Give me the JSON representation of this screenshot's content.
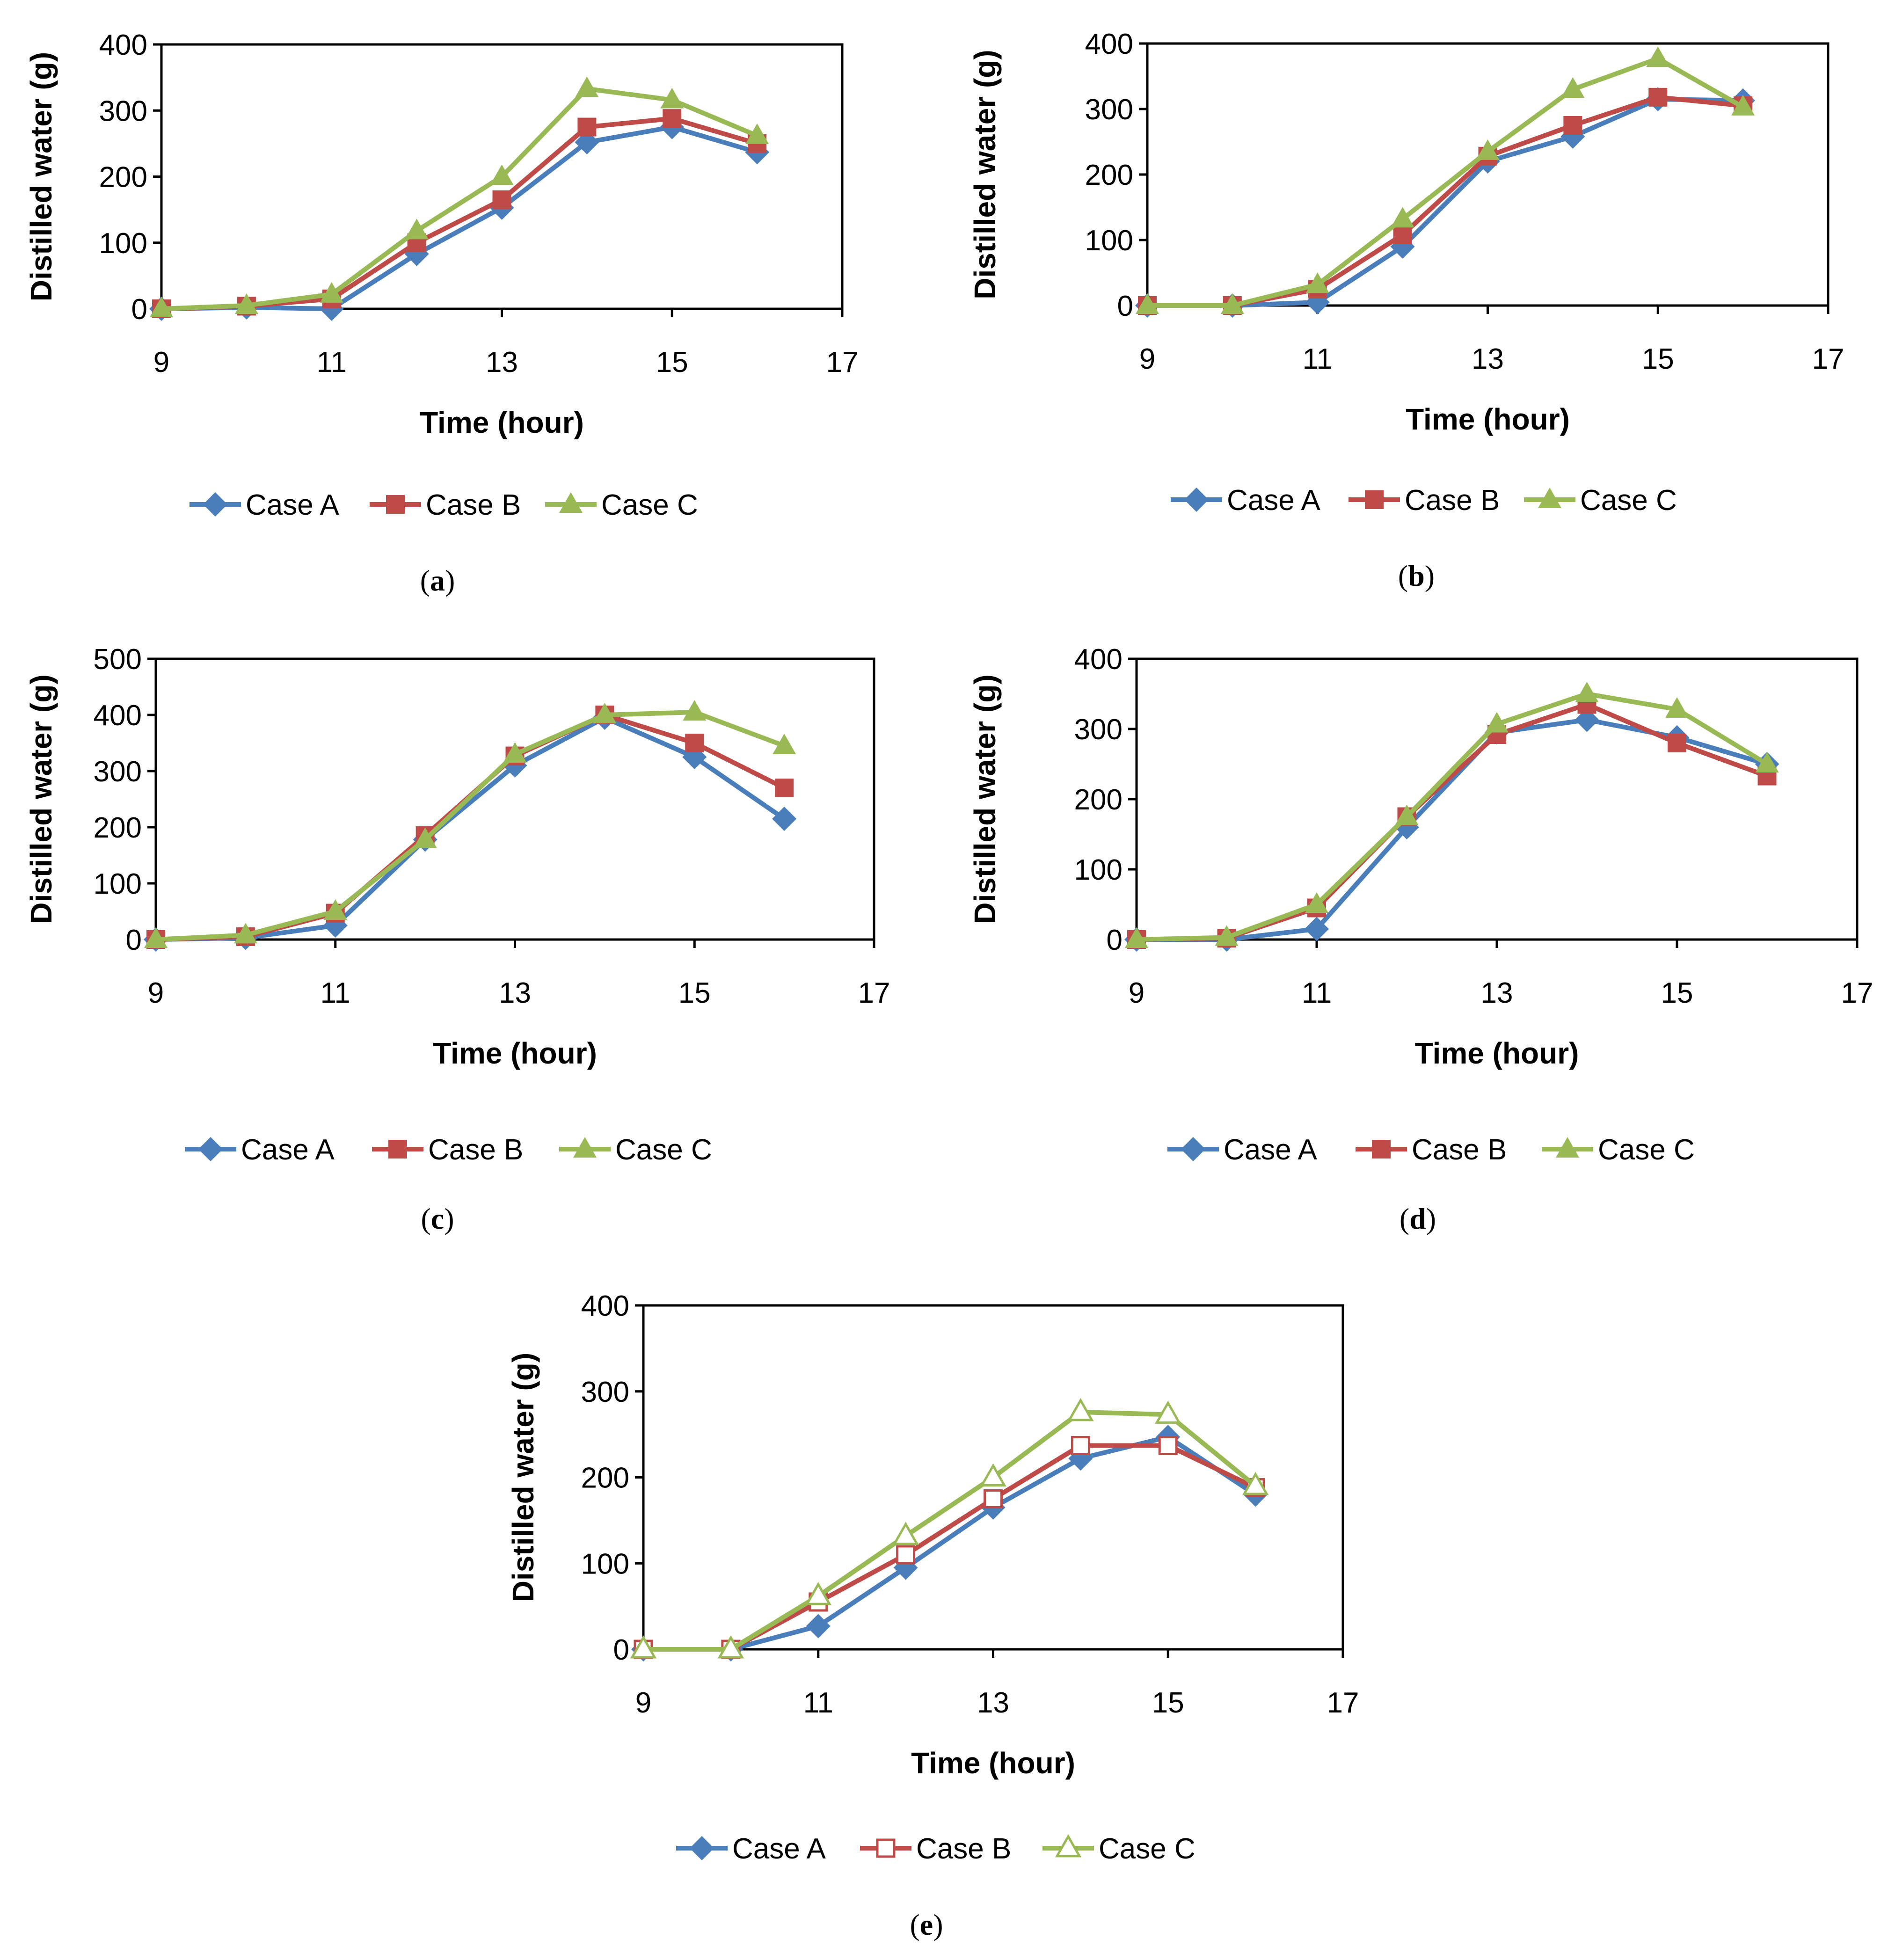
{
  "colors": {
    "case_a": "#4a7ebb",
    "case_b": "#be4b48",
    "case_c": "#98b954"
  },
  "chart_data": [
    {
      "id": "a",
      "type": "line",
      "caption_letter": "a",
      "xlabel": "Time (hour)",
      "ylabel": "Distilled water (g)",
      "xlim": [
        9,
        17
      ],
      "ylim": [
        0,
        400
      ],
      "xticks": [
        9,
        11,
        13,
        15,
        17
      ],
      "yticks": [
        0,
        100,
        200,
        300,
        400
      ],
      "x": [
        9,
        10,
        11,
        12,
        13,
        14,
        15,
        16
      ],
      "series": [
        {
          "name": "Case A",
          "marker": "diamond",
          "values": [
            0,
            2,
            0,
            83,
            153,
            252,
            275,
            237
          ]
        },
        {
          "name": "Case B",
          "marker": "square",
          "values": [
            0,
            4,
            15,
            100,
            165,
            275,
            288,
            250
          ]
        },
        {
          "name": "Case C",
          "marker": "triangle",
          "values": [
            0,
            5,
            22,
            118,
            200,
            333,
            316,
            262
          ]
        }
      ]
    },
    {
      "id": "b",
      "type": "line",
      "caption_letter": "b",
      "xlabel": "Time (hour)",
      "ylabel": "Distilled water (g)",
      "xlim": [
        9,
        17
      ],
      "ylim": [
        0,
        400
      ],
      "xticks": [
        9,
        11,
        13,
        15,
        17
      ],
      "yticks": [
        0,
        100,
        200,
        300,
        400
      ],
      "x": [
        9,
        10,
        11,
        12,
        13,
        14,
        15,
        16
      ],
      "series": [
        {
          "name": "Case A",
          "marker": "diamond",
          "values": [
            0,
            0,
            5,
            90,
            220,
            258,
            315,
            313
          ]
        },
        {
          "name": "Case B",
          "marker": "square",
          "values": [
            0,
            0,
            25,
            108,
            228,
            275,
            318,
            305
          ]
        },
        {
          "name": "Case C",
          "marker": "triangle",
          "values": [
            0,
            0,
            32,
            132,
            235,
            330,
            377,
            303
          ]
        }
      ]
    },
    {
      "id": "c",
      "type": "line",
      "caption_letter": "c",
      "xlabel": "Time (hour)",
      "ylabel": "Distilled water (g)",
      "xlim": [
        9,
        17
      ],
      "ylim": [
        0,
        500
      ],
      "xticks": [
        9,
        11,
        13,
        15,
        17
      ],
      "yticks": [
        0,
        100,
        200,
        300,
        400,
        500
      ],
      "x": [
        9,
        10,
        11,
        12,
        13,
        14,
        15,
        16
      ],
      "series": [
        {
          "name": "Case A",
          "marker": "diamond",
          "values": [
            0,
            3,
            25,
            178,
            310,
            395,
            325,
            215
          ]
        },
        {
          "name": "Case B",
          "marker": "square",
          "values": [
            0,
            5,
            47,
            185,
            327,
            400,
            350,
            270
          ]
        },
        {
          "name": "Case C",
          "marker": "triangle",
          "values": [
            0,
            8,
            50,
            178,
            330,
            400,
            405,
            345
          ]
        }
      ]
    },
    {
      "id": "d",
      "type": "line",
      "caption_letter": "d",
      "xlabel": "Time (hour)",
      "ylabel": "Distilled water (g)",
      "xlim": [
        9,
        17
      ],
      "ylim": [
        0,
        400
      ],
      "xticks": [
        9,
        11,
        13,
        15,
        17
      ],
      "yticks": [
        0,
        100,
        200,
        300,
        400
      ],
      "x": [
        9,
        10,
        11,
        12,
        13,
        14,
        15,
        16
      ],
      "series": [
        {
          "name": "Case A",
          "marker": "diamond",
          "values": [
            0,
            0,
            15,
            160,
            295,
            313,
            288,
            250
          ]
        },
        {
          "name": "Case B",
          "marker": "square",
          "values": [
            0,
            2,
            45,
            175,
            292,
            335,
            280,
            233
          ]
        },
        {
          "name": "Case C",
          "marker": "triangle",
          "values": [
            0,
            3,
            50,
            175,
            307,
            350,
            328,
            250
          ]
        }
      ]
    },
    {
      "id": "e",
      "type": "line",
      "caption_letter": "e",
      "xlabel": "Time (hour)",
      "ylabel": "Distilled water (g)",
      "xlim": [
        9,
        17
      ],
      "ylim": [
        0,
        400
      ],
      "xticks": [
        9,
        11,
        13,
        15,
        17
      ],
      "yticks": [
        0,
        100,
        200,
        300,
        400
      ],
      "x": [
        9,
        10,
        11,
        12,
        13,
        14,
        15,
        16
      ],
      "series": [
        {
          "name": "Case A",
          "marker": "diamond",
          "values": [
            0,
            0,
            27,
            95,
            165,
            222,
            247,
            180
          ]
        },
        {
          "name": "Case B",
          "marker": "square-open",
          "values": [
            0,
            0,
            55,
            110,
            175,
            237,
            237,
            188
          ]
        },
        {
          "name": "Case C",
          "marker": "triangle-open",
          "values": [
            0,
            0,
            62,
            132,
            200,
            276,
            273,
            190
          ]
        }
      ]
    }
  ]
}
